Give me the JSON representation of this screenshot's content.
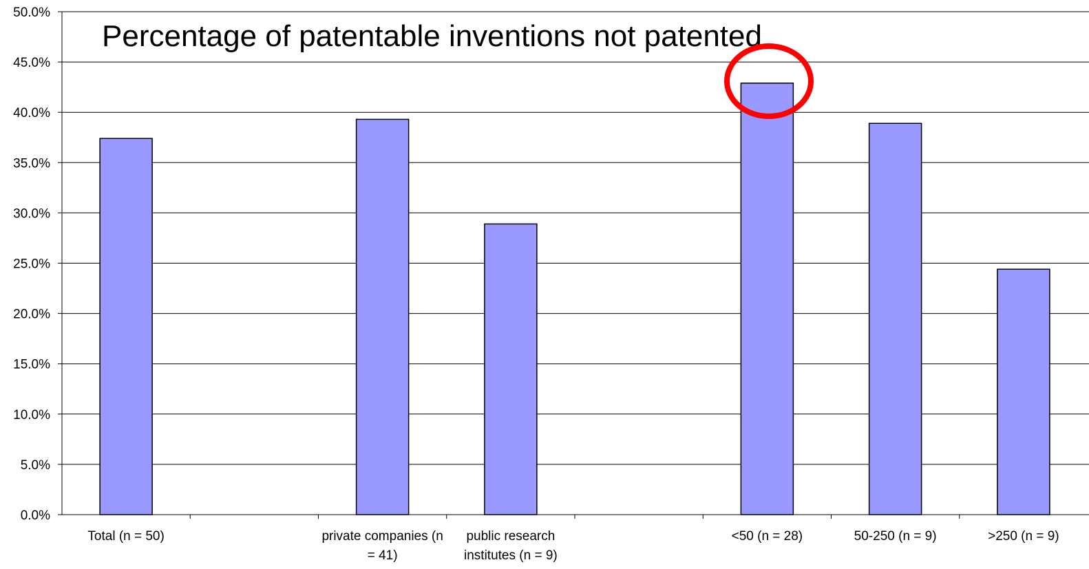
{
  "chart_data": {
    "type": "bar",
    "title": "Percentage of patentable inventions not patented",
    "categories": [
      "Total (n = 50)",
      null,
      "private companies (n = 41)",
      "public research institutes (n = 9)",
      null,
      "<50 (n = 28)",
      "50-250 (n = 9)",
      ">250 (n = 9)"
    ],
    "values": [
      37.4,
      null,
      39.3,
      28.9,
      null,
      42.9,
      38.9,
      24.4
    ],
    "color": "#9999ff",
    "ylim": [
      0,
      50
    ],
    "yticks": [
      {
        "value": 0,
        "label": "0.0%"
      },
      {
        "value": 5,
        "label": "5.0%"
      },
      {
        "value": 10,
        "label": "10.0%"
      },
      {
        "value": 15,
        "label": "15.0%"
      },
      {
        "value": 20,
        "label": "20.0%"
      },
      {
        "value": 25,
        "label": "25.0%"
      },
      {
        "value": 30,
        "label": "30.0%"
      },
      {
        "value": 35,
        "label": "35.0%"
      },
      {
        "value": 40,
        "label": "40.0%"
      },
      {
        "value": 45,
        "label": "45.0%"
      },
      {
        "value": 50,
        "label": "50.0%"
      }
    ],
    "grid": true
  }
}
